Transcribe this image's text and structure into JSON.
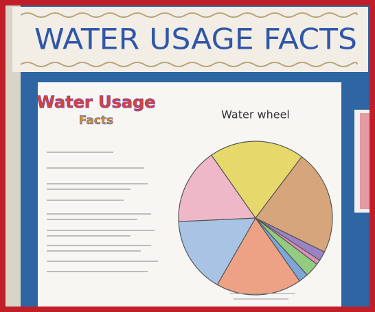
{
  "banner": {
    "title": "WATER USAGE FACTS"
  },
  "poster": {
    "title": "Water Usage",
    "subtitle": "Facts"
  },
  "chart_data": {
    "type": "pie",
    "title": "Water wheel",
    "values": [
      20,
      22,
      2,
      1,
      3,
      2,
      18,
      16,
      16
    ],
    "colors": [
      "#e6d86a",
      "#d6a57c",
      "#9a82c4",
      "#e08fb6",
      "#93cc80",
      "#7ea6d6",
      "#eda285",
      "#a9c3e4",
      "#efb8c8"
    ]
  }
}
